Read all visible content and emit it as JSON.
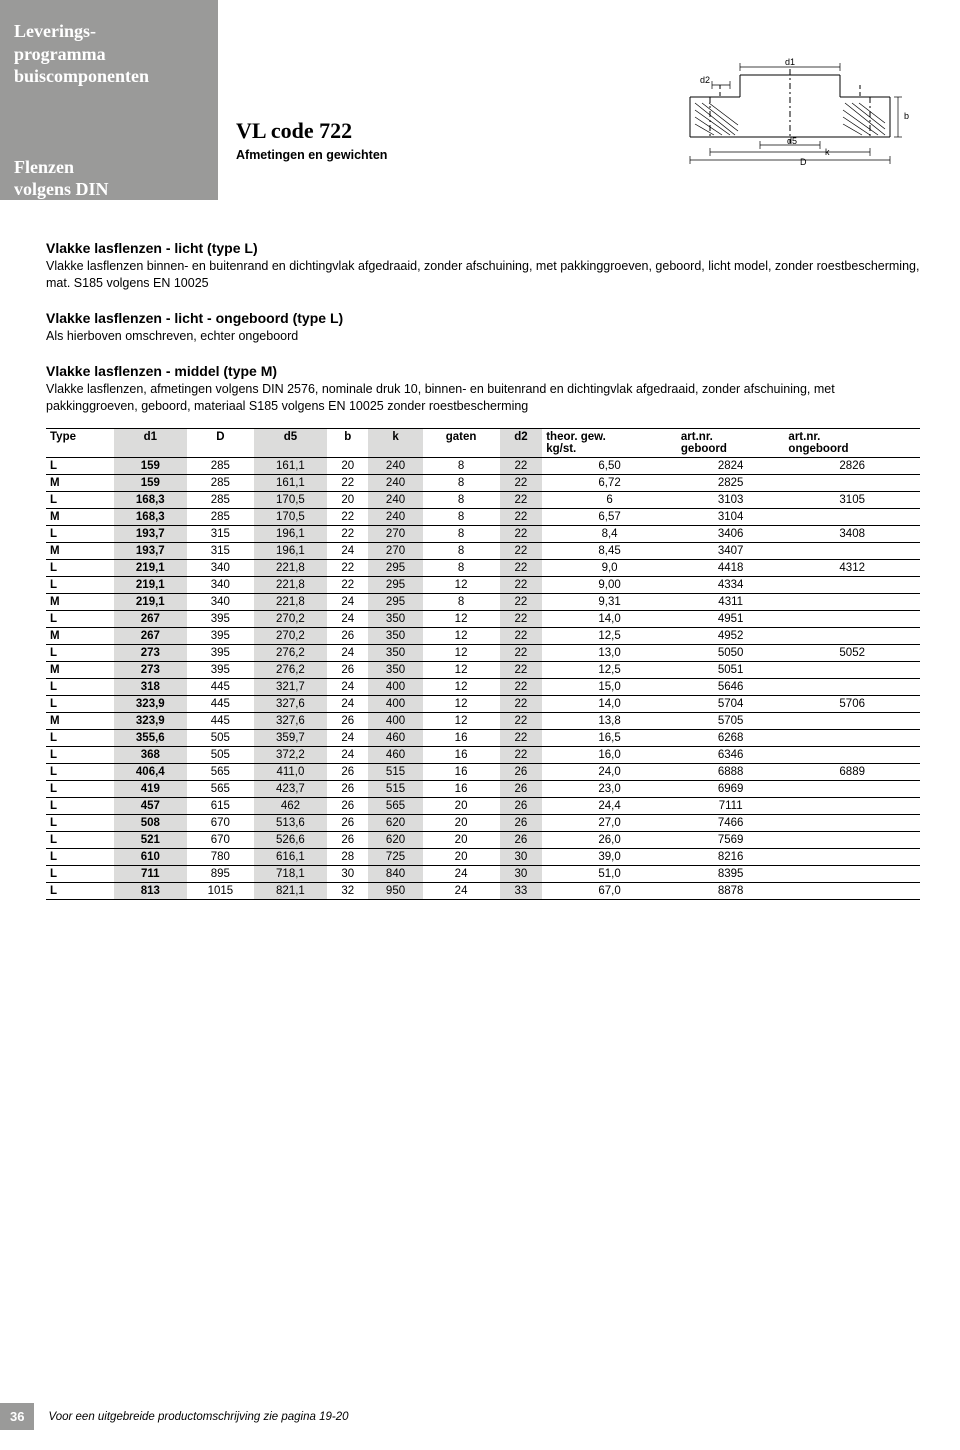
{
  "sidebar": {
    "line1": "Leverings-",
    "line2": "programma",
    "line3": "buiscomponenten",
    "lower1": "Flenzen",
    "lower2": "volgens DIN"
  },
  "title": {
    "main": "VL code 722",
    "sub": "Afmetingen en gewichten"
  },
  "sections": [
    {
      "heading": "Vlakke lasflenzen - licht (type L)",
      "body": "Vlakke lasflenzen binnen- en buitenrand en dichtingvlak afgedraaid, zonder afschuining, met pakkinggroeven, geboord, licht model, zonder roestbescherming, mat. S185 volgens EN 10025"
    },
    {
      "heading": "Vlakke lasflenzen - licht - ongeboord (type L)",
      "body": "Als hierboven omschreven, echter ongeboord"
    },
    {
      "heading": "Vlakke lasflenzen - middel (type M)",
      "body": "Vlakke lasflenzen, afmetingen volgens DIN 2576, nominale druk 10, binnen- en buitenrand en dichtingvlak afgedraaid, zonder afschuining, met pakkinggroeven, geboord, materiaal S185 volgens EN 10025 zonder roestbescherming"
    }
  ],
  "table": {
    "columns": [
      "Type",
      "d1",
      "D",
      "d5",
      "b",
      "k",
      "gaten",
      "d2",
      "theor. gew. kg/st.",
      "art.nr. geboord",
      "art.nr. ongeboord"
    ],
    "col_header_line2": [
      "",
      "",
      "",
      "",
      "",
      "",
      "",
      "",
      "kg/st.",
      "geboord",
      "ongeboord"
    ],
    "col_header_line1": [
      "Type",
      "d1",
      "D",
      "d5",
      "b",
      "k",
      "gaten",
      "d2",
      "theor. gew.",
      "art.nr.",
      "art.nr."
    ],
    "shaded_cols": [
      1,
      3,
      5,
      7
    ],
    "rows": [
      [
        "L",
        "159",
        "285",
        "161,1",
        "20",
        "240",
        "8",
        "22",
        "6,50",
        "2824",
        "2826"
      ],
      [
        "M",
        "159",
        "285",
        "161,1",
        "22",
        "240",
        "8",
        "22",
        "6,72",
        "2825",
        ""
      ],
      [
        "L",
        "168,3",
        "285",
        "170,5",
        "20",
        "240",
        "8",
        "22",
        "6",
        "3103",
        "3105"
      ],
      [
        "M",
        "168,3",
        "285",
        "170,5",
        "22",
        "240",
        "8",
        "22",
        "6,57",
        "3104",
        ""
      ],
      [
        "L",
        "193,7",
        "315",
        "196,1",
        "22",
        "270",
        "8",
        "22",
        "8,4",
        "3406",
        "3408"
      ],
      [
        "M",
        "193,7",
        "315",
        "196,1",
        "24",
        "270",
        "8",
        "22",
        "8,45",
        "3407",
        ""
      ],
      [
        "L",
        "219,1",
        "340",
        "221,8",
        "22",
        "295",
        "8",
        "22",
        "9,0",
        "4418",
        "4312"
      ],
      [
        "L",
        "219,1",
        "340",
        "221,8",
        "22",
        "295",
        "12",
        "22",
        "9,00",
        "4334",
        ""
      ],
      [
        "M",
        "219,1",
        "340",
        "221,8",
        "24",
        "295",
        "8",
        "22",
        "9,31",
        "4311",
        ""
      ],
      [
        "L",
        "267",
        "395",
        "270,2",
        "24",
        "350",
        "12",
        "22",
        "14,0",
        "4951",
        ""
      ],
      [
        "M",
        "267",
        "395",
        "270,2",
        "26",
        "350",
        "12",
        "22",
        "12,5",
        "4952",
        ""
      ],
      [
        "L",
        "273",
        "395",
        "276,2",
        "24",
        "350",
        "12",
        "22",
        "13,0",
        "5050",
        "5052"
      ],
      [
        "M",
        "273",
        "395",
        "276,2",
        "26",
        "350",
        "12",
        "22",
        "12,5",
        "5051",
        ""
      ],
      [
        "L",
        "318",
        "445",
        "321,7",
        "24",
        "400",
        "12",
        "22",
        "15,0",
        "5646",
        ""
      ],
      [
        "L",
        "323,9",
        "445",
        "327,6",
        "24",
        "400",
        "12",
        "22",
        "14,0",
        "5704",
        "5706"
      ],
      [
        "M",
        "323,9",
        "445",
        "327,6",
        "26",
        "400",
        "12",
        "22",
        "13,8",
        "5705",
        ""
      ],
      [
        "L",
        "355,6",
        "505",
        "359,7",
        "24",
        "460",
        "16",
        "22",
        "16,5",
        "6268",
        ""
      ],
      [
        "L",
        "368",
        "505",
        "372,2",
        "24",
        "460",
        "16",
        "22",
        "16,0",
        "6346",
        ""
      ],
      [
        "L",
        "406,4",
        "565",
        "411,0",
        "26",
        "515",
        "16",
        "26",
        "24,0",
        "6888",
        "6889"
      ],
      [
        "L",
        "419",
        "565",
        "423,7",
        "26",
        "515",
        "16",
        "26",
        "23,0",
        "6969",
        ""
      ],
      [
        "L",
        "457",
        "615",
        "462",
        "26",
        "565",
        "20",
        "26",
        "24,4",
        "7111",
        ""
      ],
      [
        "L",
        "508",
        "670",
        "513,6",
        "26",
        "620",
        "20",
        "26",
        "27,0",
        "7466",
        ""
      ],
      [
        "L",
        "521",
        "670",
        "526,6",
        "26",
        "620",
        "20",
        "26",
        "26,0",
        "7569",
        ""
      ],
      [
        "L",
        "610",
        "780",
        "616,1",
        "28",
        "725",
        "20",
        "30",
        "39,0",
        "8216",
        ""
      ],
      [
        "L",
        "711",
        "895",
        "718,1",
        "30",
        "840",
        "24",
        "30",
        "51,0",
        "8395",
        ""
      ],
      [
        "L",
        "813",
        "1015",
        "821,1",
        "32",
        "950",
        "24",
        "33",
        "67,0",
        "8878",
        ""
      ]
    ]
  },
  "diagram_labels": {
    "d1": "d1",
    "d2": "d2",
    "d5": "d5",
    "k": "k",
    "D": "D",
    "b": "b"
  },
  "footer": {
    "page": "36",
    "text": "Voor een uitgebreide productomschrijving zie pagina 19-20"
  },
  "colors": {
    "sidebar_bg": "#9a9a99",
    "shade": "#dcdcdb",
    "text": "#000000",
    "white": "#ffffff"
  }
}
